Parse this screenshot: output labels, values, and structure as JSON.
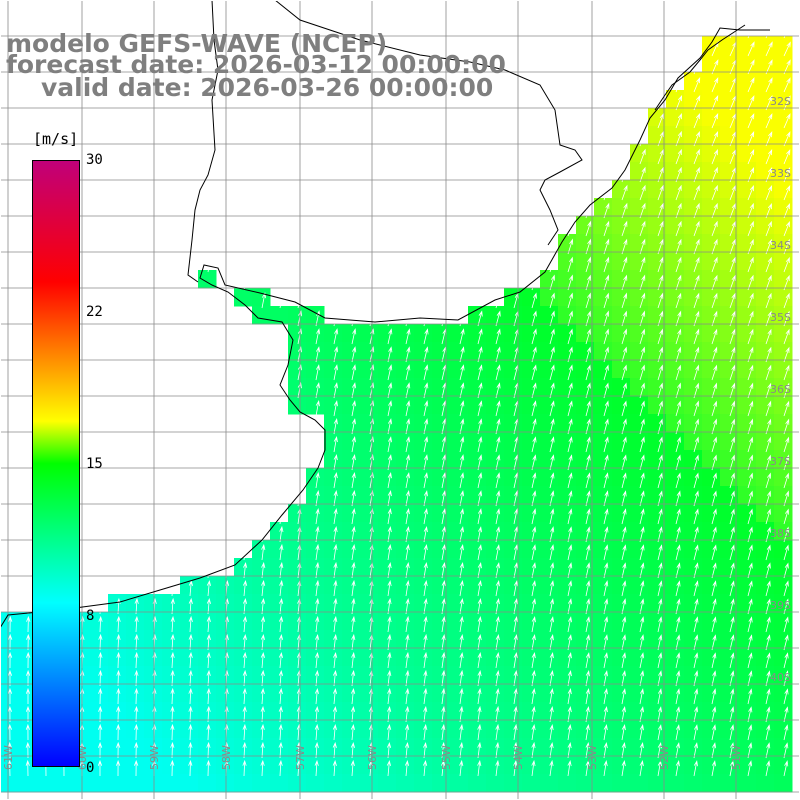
{
  "title": {
    "line1": "modelo GEFS-WAVE (NCEP)",
    "line2": "forecast date: 2026-03-12 00:00:00",
    "line3": "valid date: 2026-03-26 00:00:00"
  },
  "colorbar": {
    "unit": "[m/s]",
    "ticks": [
      "30",
      "22",
      "15",
      "8",
      "0"
    ],
    "range": [
      0,
      30
    ],
    "stops": [
      "#0000ff",
      "#00ffff",
      "#00ff00",
      "#ffff00",
      "#ff0000",
      "#c0007a"
    ]
  },
  "grid_labels": {
    "lat": [
      "32S",
      "33S",
      "34S",
      "35S",
      "36S",
      "37S",
      "38S",
      "39S",
      "40S"
    ],
    "lon": [
      "61W",
      "60W",
      "59W",
      "58W",
      "57W",
      "56W",
      "55W",
      "54W",
      "53W",
      "52W",
      "51W"
    ]
  },
  "colors": {
    "land": "#ffffff",
    "coast": "#000000",
    "grid": "#8a8a8a",
    "title": "#7f7f7f",
    "arrows": "#ffffff"
  }
}
